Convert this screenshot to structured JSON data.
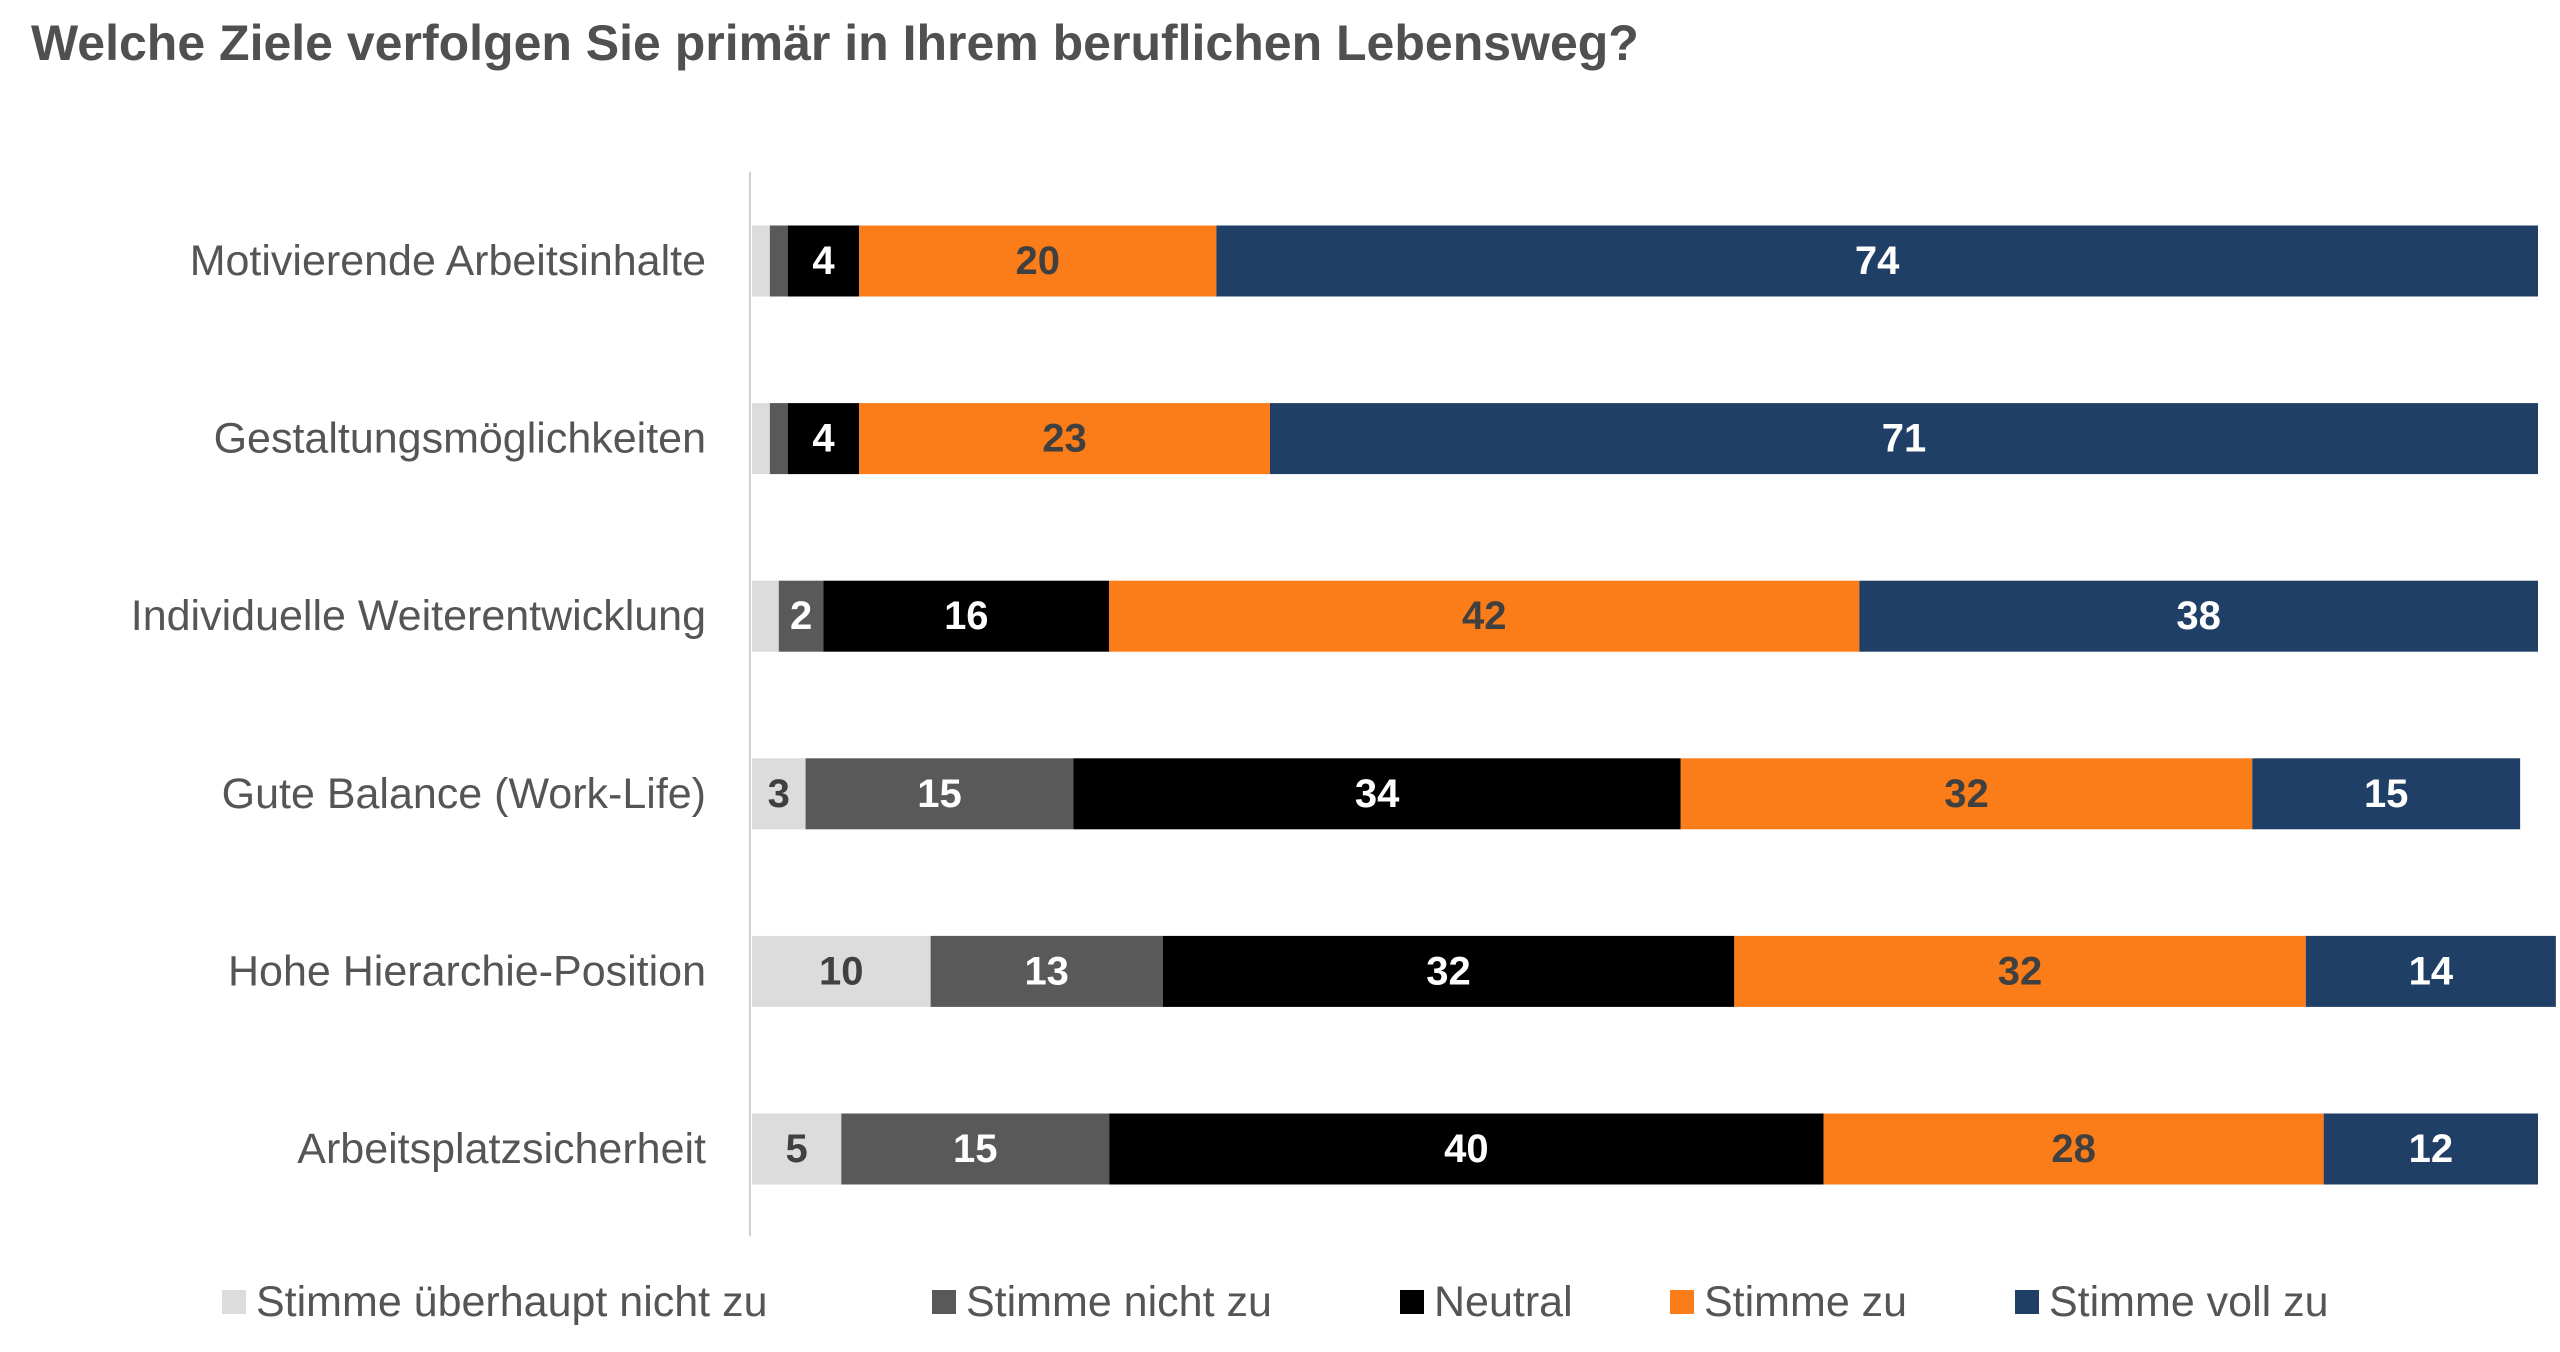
{
  "chart_data": {
    "type": "bar",
    "orientation": "horizontal",
    "stacked": true,
    "title": "Welche Ziele verfolgen Sie primär in Ihrem beruflichen Lebensweg?",
    "xlabel": "",
    "ylabel": "",
    "xlim": [
      0,
      100
    ],
    "grid": false,
    "legend_position": "bottom",
    "categories": [
      "Motivierende Arbeitsinhalte",
      "Gestaltungsmöglichkeiten",
      "Individuelle Weiterentwicklung",
      "Gute Balance (Work-Life)",
      "Hohe Hierarchie-Position",
      "Arbeitsplatzsicherheit"
    ],
    "series": [
      {
        "name": "Stimme überhaupt nicht zu",
        "color": "#DCDCDC",
        "label_color": "#404040",
        "values": [
          1,
          1,
          1.5,
          3,
          10,
          5
        ],
        "labels": [
          "",
          "",
          "",
          "3",
          "10",
          "5"
        ]
      },
      {
        "name": "Stimme nicht zu",
        "color": "#595959",
        "label_color": "#FFFFFF",
        "values": [
          1,
          1,
          2.5,
          15,
          13,
          15
        ],
        "labels": [
          "",
          "",
          "2",
          "15",
          "13",
          "15"
        ]
      },
      {
        "name": "Neutral",
        "color": "#000000",
        "label_color": "#FFFFFF",
        "values": [
          4,
          4,
          16,
          34,
          32,
          40
        ],
        "labels": [
          "4",
          "4",
          "16",
          "34",
          "32",
          "40"
        ]
      },
      {
        "name": "Stimme zu",
        "color": "#FA7D19",
        "label_color": "#404040",
        "values": [
          20,
          23,
          42,
          32,
          32,
          28
        ],
        "labels": [
          "20",
          "23",
          "42",
          "32",
          "32",
          "28"
        ]
      },
      {
        "name": "Stimme voll zu",
        "color": "#203F66",
        "label_color": "#FFFFFF",
        "values": [
          74,
          71,
          38,
          15,
          14,
          12
        ],
        "labels": [
          "74",
          "71",
          "38",
          "15",
          "14",
          "12"
        ]
      }
    ]
  }
}
